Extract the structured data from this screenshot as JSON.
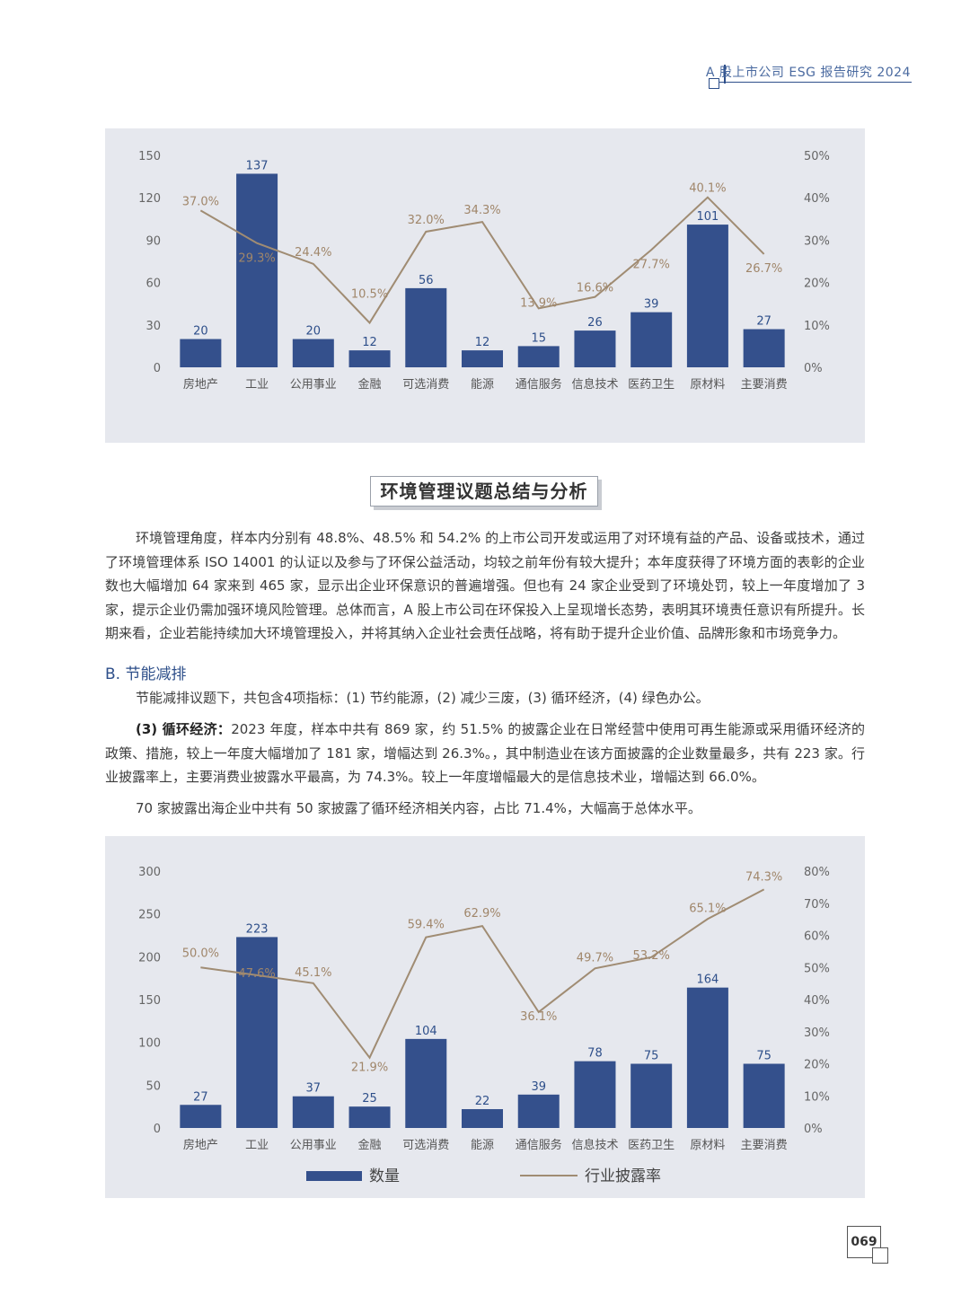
{
  "header": {
    "title": "A 股上市公司 ESG 报告研究 2024"
  },
  "section_title": "环境管理议题总结与分析",
  "paragraphs": {
    "p1": "环境管理角度，样本内分别有 48.8%、48.5% 和 54.2% 的上市公司开发或运用了对环境有益的产品、设备或技术，通过了环境管理体系 ISO 14001 的认证以及参与了环保公益活动，均较之前年份有较大提升；本年度获得了环境方面的表彰的企业数也大幅增加 64 家来到 465 家，显示出企业环保意识的普遍增强。但也有 24 家企业受到了环境处罚，较上一年度增加了 3 家，提示企业仍需加强环境风险管理。总体而言，A 股上市公司在环保投入上呈现增长态势，表明其环境责任意识有所提升。长期来看，企业若能持续加大环境管理投入，并将其纳入企业社会责任战略，将有助于提升企业价值、品牌形象和市场竞争力。",
    "subhead": "B. 节能减排",
    "p2": "节能减排议题下，共包含4项指标：(1) 节约能源，(2) 减少三废，(3) 循环经济，(4) 绿色办公。",
    "p3_bold": "(3) 循环经济：",
    "p3": "2023 年度，样本中共有 869 家，约 51.5% 的披露企业在日常经营中使用可再生能源或采用循环经济的政策、措施，较上一年度大幅增加了 181 家，增幅达到 26.3%。，其中制造业在该方面披露的企业数量最多，共有 223 家。行业披露率上，主要消费业披露水平最高，为 74.3%。较上一年度增幅最大的是信息技术业，增幅达到 66.0%。",
    "p4": "70 家披露出海企业中共有 50 家披露了循环经济相关内容，占比 71.4%，大幅高于总体水平。"
  },
  "page_number": "069",
  "colors": {
    "bar": "#34508c",
    "line": "#a08c73",
    "chart_bg": "#e6e8ee",
    "accent": "#2e4f8a"
  },
  "chart_data": [
    {
      "type": "bar",
      "categories": [
        "房地产",
        "工业",
        "公用事业",
        "金融",
        "可选消费",
        "能源",
        "通信服务",
        "信息技术",
        "医药卫生",
        "原材料",
        "主要消费"
      ],
      "series": [
        {
          "values": [
            20,
            137,
            20,
            12,
            56,
            12,
            15,
            26,
            39,
            101,
            27
          ]
        },
        {
          "type": "line",
          "axis": "right",
          "values": [
            37.0,
            29.3,
            24.4,
            10.5,
            32.0,
            34.3,
            13.9,
            16.6,
            27.7,
            40.1,
            26.7
          ]
        }
      ],
      "bar_labels": [
        "20",
        "137",
        "20",
        "12",
        "56",
        "12",
        "15",
        "26",
        "39",
        "101",
        "27"
      ],
      "line_labels": [
        "37.0%",
        "29.3%",
        "24.4%",
        "10.5%",
        "32.0%",
        "34.3%",
        "13.9%",
        "16.6%",
        "27.7%",
        "40.1%",
        "26.7%"
      ],
      "left_ticks": [
        "0",
        "30",
        "60",
        "90",
        "120",
        "150"
      ],
      "right_ticks": [
        "0%",
        "10%",
        "20%",
        "30%",
        "40%",
        "50%"
      ],
      "ylim": [
        0,
        150
      ],
      "y2lim": [
        0,
        50
      ],
      "grid": false
    },
    {
      "type": "bar",
      "categories": [
        "房地产",
        "工业",
        "公用事业",
        "金融",
        "可选消费",
        "能源",
        "通信服务",
        "信息技术",
        "医药卫生",
        "原材料",
        "主要消费"
      ],
      "series": [
        {
          "name": "数量",
          "values": [
            27,
            223,
            37,
            25,
            104,
            22,
            39,
            78,
            75,
            164,
            75
          ]
        },
        {
          "name": "行业披露率",
          "type": "line",
          "axis": "right",
          "values": [
            50.0,
            47.6,
            45.1,
            21.9,
            59.4,
            62.9,
            36.1,
            49.7,
            53.2,
            65.1,
            74.3
          ]
        }
      ],
      "bar_labels": [
        "27",
        "223",
        "37",
        "25",
        "104",
        "22",
        "39",
        "78",
        "75",
        "164",
        "75"
      ],
      "line_labels": [
        "50.0%",
        "47.6%",
        "45.1%",
        "21.9%",
        "59.4%",
        "62.9%",
        "36.1%",
        "49.7%",
        "53.2%",
        "65.1%",
        "74.3%"
      ],
      "left_ticks": [
        "0",
        "50",
        "100",
        "150",
        "200",
        "250",
        "300"
      ],
      "right_ticks": [
        "0%",
        "10%",
        "20%",
        "30%",
        "40%",
        "50%",
        "60%",
        "70%",
        "80%"
      ],
      "ylim": [
        0,
        300
      ],
      "y2lim": [
        0,
        80
      ],
      "grid": false,
      "legend": {
        "placement": "bottom",
        "items": [
          "数量",
          "行业披露率"
        ]
      }
    }
  ]
}
